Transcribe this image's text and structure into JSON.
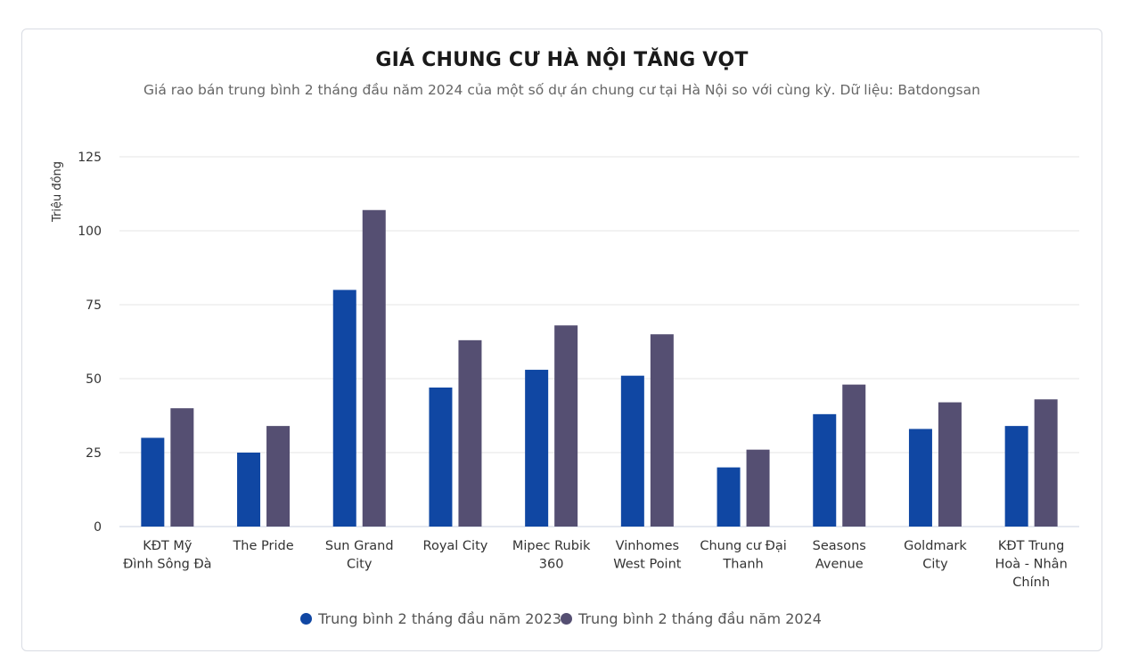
{
  "chart_data": {
    "type": "bar",
    "title": "GIÁ CHUNG CƯ HÀ NỘI TĂNG VỌT",
    "subtitle": "Giá rao bán trung bình 2 tháng đầu năm 2024 của một số dự án chung cư tại Hà Nội so với cùng kỳ. Dữ liệu: Batdongsan",
    "xlabel": "",
    "ylabel": "Triệu đồng",
    "ylim": [
      0,
      125
    ],
    "yticks": [
      0,
      25,
      50,
      75,
      100,
      125
    ],
    "grid": true,
    "legend_position": "bottom",
    "categories": [
      [
        "KĐT Mỹ",
        "Đình Sông Đà"
      ],
      [
        "The Pride"
      ],
      [
        "Sun Grand",
        "City"
      ],
      [
        "Royal City"
      ],
      [
        "Mipec Rubik",
        "360"
      ],
      [
        "Vinhomes",
        "West Point"
      ],
      [
        "Chung cư Đại",
        "Thanh"
      ],
      [
        "Seasons",
        "Avenue"
      ],
      [
        "Goldmark",
        "City"
      ],
      [
        "KĐT Trung",
        "Hoà - Nhân",
        "Chính"
      ]
    ],
    "series": [
      {
        "name": "Trung bình 2 tháng đầu năm 2023",
        "color": "#1047a3",
        "values": [
          30,
          25,
          80,
          47,
          53,
          51,
          20,
          38,
          33,
          34
        ]
      },
      {
        "name": "Trung bình 2 tháng đầu năm 2024",
        "color": "#554f72",
        "values": [
          40,
          34,
          107,
          63,
          68,
          65,
          26,
          48,
          42,
          43
        ]
      }
    ]
  }
}
